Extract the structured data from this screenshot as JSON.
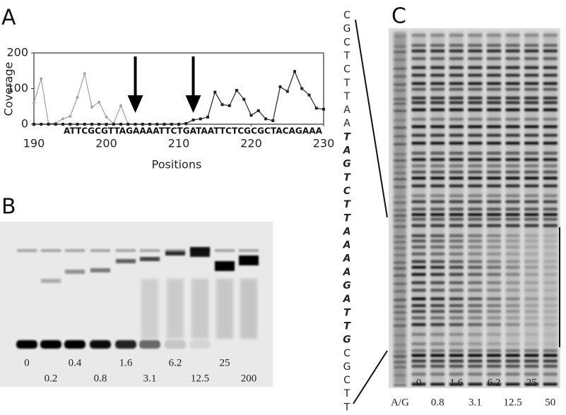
{
  "panels": {
    "a": "A",
    "b": "B",
    "c": "C"
  },
  "chart_data": {
    "type": "line",
    "ylabel": "Coverage",
    "xlabel": "Positions",
    "sequence": "ATTCGCGTTAGAAAATTCTGATAATTCTCGCGCTACAGAAA",
    "x": [
      190,
      191,
      192,
      193,
      194,
      195,
      196,
      197,
      198,
      199,
      200,
      201,
      202,
      203,
      204,
      205,
      206,
      207,
      208,
      209,
      210,
      211,
      212,
      213,
      214,
      215,
      216,
      217,
      218,
      219,
      220,
      221,
      222,
      223,
      224,
      225,
      226,
      227,
      228,
      229,
      230
    ],
    "series": [
      {
        "color": "#a0a0a0",
        "values": [
          60,
          128,
          2,
          3,
          15,
          22,
          75,
          142,
          48,
          62,
          20,
          2,
          52,
          0,
          0,
          0,
          0,
          0,
          0,
          0,
          0,
          0,
          null,
          null,
          null,
          null,
          null,
          null,
          null,
          null,
          null,
          null,
          null,
          null,
          null,
          null,
          null,
          null,
          null,
          null,
          null
        ]
      },
      {
        "color": "#222222",
        "values": [
          0,
          0,
          0,
          0,
          0,
          0,
          0,
          0,
          0,
          0,
          0,
          0,
          0,
          0,
          0,
          0,
          0,
          0,
          0,
          0,
          0,
          2,
          12,
          15,
          20,
          90,
          55,
          52,
          95,
          70,
          25,
          38,
          15,
          10,
          105,
          92,
          148,
          100,
          82,
          45,
          42
        ]
      }
    ],
    "arrows": [
      204,
      212
    ],
    "xlim": [
      190,
      230
    ],
    "xticks": [
      190,
      200,
      210,
      220,
      230
    ],
    "ylim": [
      0,
      200
    ],
    "yticks": [
      0,
      100,
      200
    ]
  },
  "gel_b": {
    "lanes": [
      0,
      0.2,
      0.4,
      0.8,
      1.6,
      3.1,
      6.2,
      12.5,
      25,
      200
    ]
  },
  "gel_c": {
    "lanes": [
      "A/G",
      0,
      0.8,
      1.6,
      3.1,
      6.2,
      12.5,
      25,
      50
    ],
    "sequence_top": [
      "C",
      "G",
      "C",
      "T",
      "C",
      "T",
      "T",
      "A",
      "A"
    ],
    "sequence_bold": [
      "T",
      "A",
      "G",
      "T",
      "C",
      "T",
      "T",
      "A",
      "A",
      "A",
      "A",
      "G",
      "A",
      "T",
      "T",
      "G"
    ],
    "sequence_bottom": [
      "C",
      "G",
      "C",
      "T",
      "T"
    ]
  }
}
